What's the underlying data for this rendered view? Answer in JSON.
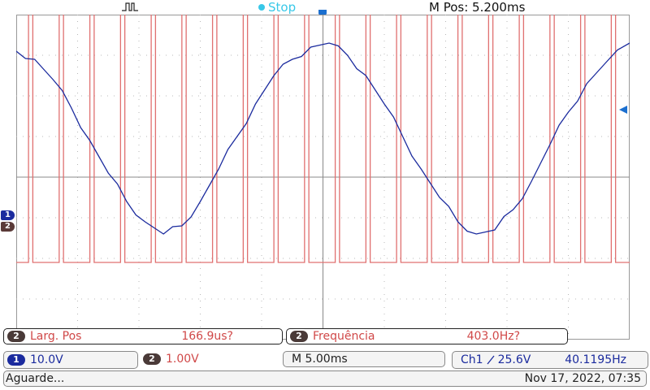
{
  "top_bar": {
    "run_status": "Stop",
    "main_position": "M Pos: 5.200ms",
    "trigger_icon": "square-pulse-icon"
  },
  "screen": {
    "trigger_marker": "T",
    "ch1_marker": "1",
    "ch2_marker": "2",
    "grid": "on"
  },
  "measurements": [
    {
      "channel": "2",
      "label": "Larg. Pos",
      "value": "166.9us?"
    },
    {
      "channel": "2",
      "label": "Frequência",
      "value": "403.0Hz?"
    }
  ],
  "channels": {
    "ch1": {
      "number": "1",
      "scale": "10.0V",
      "color": "#1b2b9e"
    },
    "ch2": {
      "number": "2",
      "scale": "1.00V",
      "color": "#e07070"
    }
  },
  "timebase": "M 5.00ms",
  "trigger": {
    "source": "Ch1",
    "edge_icon": "rising-edge-icon",
    "level": "25.6V",
    "frequency": "40.1195Hz"
  },
  "status": {
    "text": "Aguarde...",
    "datetime": "Nov 17, 2022, 07:35"
  },
  "chart_data": {
    "type": "line",
    "grid": true,
    "divisions": {
      "x": 10,
      "y": 8
    },
    "series": [
      {
        "channel": "1",
        "waveform": "sine",
        "x_div": [
          0,
          0.3,
          0.6,
          0.9,
          1.2,
          1.5,
          1.8,
          2.1,
          2.4,
          2.7,
          3.0,
          3.3,
          3.6,
          3.9,
          4.2,
          4.5,
          4.8,
          5.1,
          5.4,
          5.7,
          6.0,
          6.3,
          6.6,
          6.9,
          7.2,
          7.5,
          7.8,
          8.1,
          8.4,
          8.7,
          9.0,
          9.3,
          9.6,
          10.0
        ],
        "y_div": [
          3.1,
          2.9,
          2.4,
          1.7,
          0.9,
          0.1,
          -0.6,
          -1.1,
          -1.4,
          -1.2,
          -0.6,
          0.2,
          1.0,
          1.8,
          2.5,
          2.9,
          3.2,
          3.3,
          3.0,
          2.5,
          1.8,
          1.0,
          0.2,
          -0.5,
          -1.1,
          -1.4,
          -1.3,
          -0.8,
          -0.1,
          0.8,
          1.6,
          2.3,
          2.8,
          3.3
        ],
        "color": "#1b2b9e"
      },
      {
        "channel": "2",
        "waveform": "pulse-train",
        "baseline_div": -2.1,
        "pulse_top_div": 4.1,
        "pulse_x_div": [
          0.2,
          0.7,
          1.2,
          1.7,
          2.2,
          2.7,
          3.2,
          3.7,
          4.2,
          4.7,
          5.2,
          5.7,
          6.2,
          6.7,
          7.2,
          7.7,
          8.2,
          8.7,
          9.2,
          9.7
        ],
        "pulse_width_div": 0.07,
        "color": "#e07070"
      }
    ]
  }
}
